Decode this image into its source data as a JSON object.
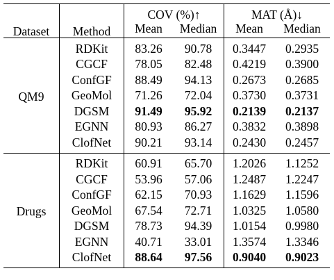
{
  "header": {
    "dataset": "Dataset",
    "method": "Method",
    "cov": "COV (%)↑",
    "mat": "MAT (Å)↓",
    "mean": "Mean",
    "median": "Median"
  },
  "groups": [
    {
      "dataset": "QM9",
      "rows": [
        {
          "method": "RDKit",
          "cov_mean": "83.26",
          "cov_median": "90.78",
          "mat_mean": "0.3447",
          "mat_median": "0.2935",
          "bold": false
        },
        {
          "method": "CGCF",
          "cov_mean": "78.05",
          "cov_median": "82.48",
          "mat_mean": "0.4219",
          "mat_median": "0.3900",
          "bold": false
        },
        {
          "method": "ConfGF",
          "cov_mean": "88.49",
          "cov_median": "94.13",
          "mat_mean": "0.2673",
          "mat_median": "0.2685",
          "bold": false
        },
        {
          "method": "GeoMol",
          "cov_mean": "71.26",
          "cov_median": "72.04",
          "mat_mean": "0.3730",
          "mat_median": "0.3731",
          "bold": false
        },
        {
          "method": "DGSM",
          "cov_mean": "91.49",
          "cov_median": "95.92",
          "mat_mean": "0.2139",
          "mat_median": "0.2137",
          "bold": true
        },
        {
          "method": "EGNN",
          "cov_mean": "80.93",
          "cov_median": "86.27",
          "mat_mean": "0.3832",
          "mat_median": "0.3898",
          "bold": false
        },
        {
          "method": "ClofNet",
          "cov_mean": "90.21",
          "cov_median": "93.14",
          "mat_mean": "0.2430",
          "mat_median": "0.2457",
          "bold": false
        }
      ]
    },
    {
      "dataset": "Drugs",
      "rows": [
        {
          "method": "RDKit",
          "cov_mean": "60.91",
          "cov_median": "65.70",
          "mat_mean": "1.2026",
          "mat_median": "1.1252",
          "bold": false
        },
        {
          "method": "CGCF",
          "cov_mean": "53.96",
          "cov_median": "57.06",
          "mat_mean": "1.2487",
          "mat_median": "1.2247",
          "bold": false
        },
        {
          "method": "ConfGF",
          "cov_mean": "62.15",
          "cov_median": "70.93",
          "mat_mean": "1.1629",
          "mat_median": "1.1596",
          "bold": false
        },
        {
          "method": "GeoMol",
          "cov_mean": "67.54",
          "cov_median": "72.71",
          "mat_mean": "1.0325",
          "mat_median": "1.0580",
          "bold": false
        },
        {
          "method": "DGSM",
          "cov_mean": "78.73",
          "cov_median": "94.39",
          "mat_mean": "1.0154",
          "mat_median": "0.9980",
          "bold": false
        },
        {
          "method": "EGNN",
          "cov_mean": "40.71",
          "cov_median": "33.01",
          "mat_mean": "1.3574",
          "mat_median": "1.3346",
          "bold": false
        },
        {
          "method": "ClofNet",
          "cov_mean": "88.64",
          "cov_median": "97.56",
          "mat_mean": "0.9040",
          "mat_median": "0.9023",
          "bold": true
        }
      ]
    }
  ]
}
